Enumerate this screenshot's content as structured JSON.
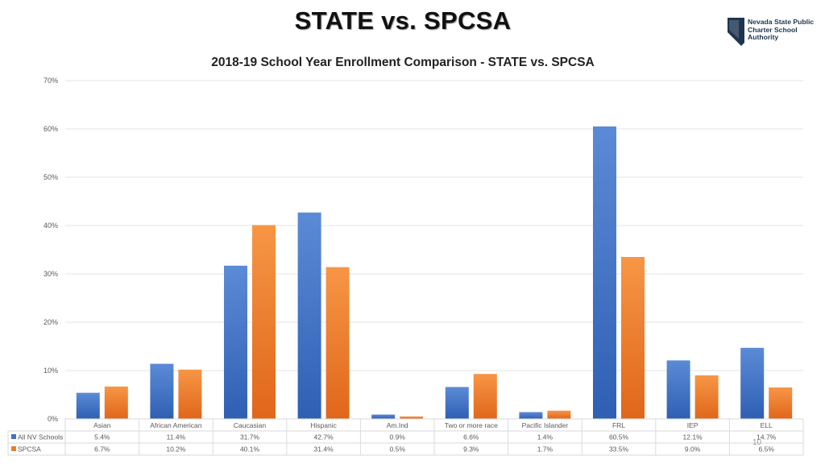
{
  "slide": {
    "title": "STATE vs. SPCSA",
    "page_number": "10"
  },
  "logo": {
    "line1": "Nevada State Public",
    "line2": "Charter School",
    "line3": "Authority",
    "icon": "nevada-state-outline-icon"
  },
  "colors": {
    "series1": "#4472C4",
    "series2": "#ED7D31",
    "grid": "#E3E3E3",
    "axis_text": "#595959"
  },
  "chart_data": {
    "type": "bar",
    "title": "2018-19 School Year Enrollment Comparison - STATE vs. SPCSA",
    "categories": [
      "Asian",
      "African American",
      "Caucasian",
      "Hispanic",
      "Am.Ind",
      "Two or more race",
      "Pacific Islander",
      "FRL",
      "IEP",
      "ELL"
    ],
    "series": [
      {
        "name": "All NV Schools",
        "values": [
          5.4,
          11.4,
          31.7,
          42.7,
          0.9,
          6.6,
          1.4,
          60.5,
          12.1,
          14.7
        ],
        "labels": [
          "5.4%",
          "11.4%",
          "31.7%",
          "42.7%",
          "0.9%",
          "6.6%",
          "1.4%",
          "60.5%",
          "12.1%",
          "14.7%"
        ]
      },
      {
        "name": "SPCSA",
        "values": [
          6.7,
          10.2,
          40.1,
          31.4,
          0.5,
          9.3,
          1.7,
          33.5,
          9.0,
          6.5
        ],
        "labels": [
          "6.7%",
          "10.2%",
          "40.1%",
          "31.4%",
          "0.5%",
          "9.3%",
          "1.7%",
          "33.5%",
          "9.0%",
          "6.5%"
        ]
      }
    ],
    "ylim": [
      0,
      70
    ],
    "yticks": [
      "0%",
      "10%",
      "20%",
      "30%",
      "40%",
      "50%",
      "60%",
      "70%"
    ],
    "grid": true,
    "legend": "data-table"
  }
}
